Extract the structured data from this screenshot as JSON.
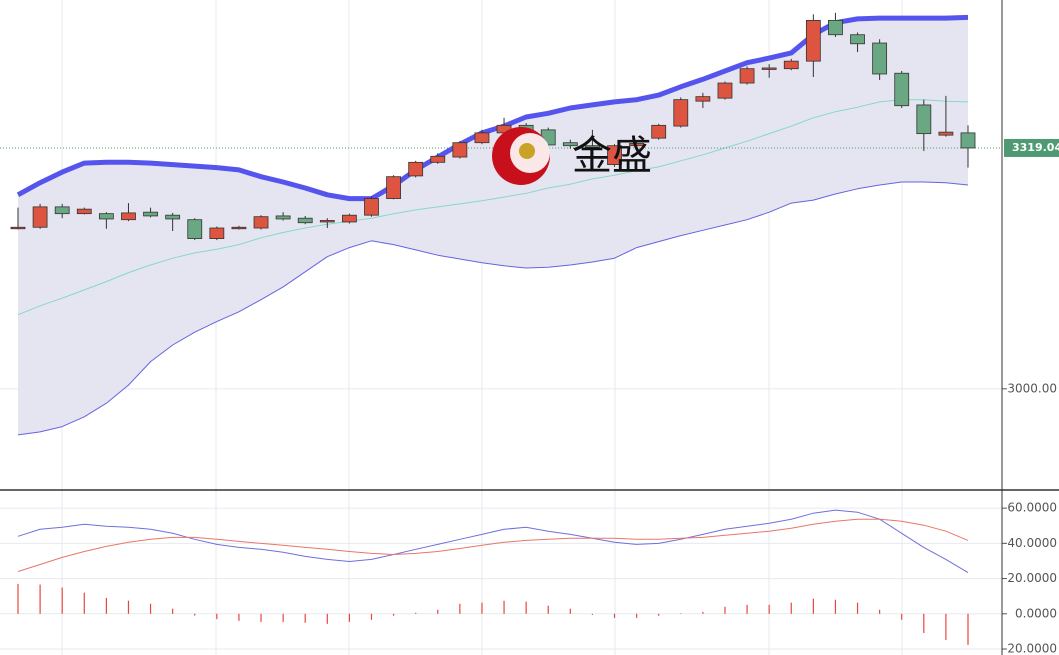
{
  "chart_data": [
    {
      "type": "candlestick",
      "watermark": "金盛",
      "categories": [
        null,
        null,
        null,
        null,
        null,
        null,
        null,
        null,
        null,
        null,
        null,
        null,
        null,
        null,
        null,
        null,
        null,
        null,
        null,
        null,
        null,
        null,
        null,
        null,
        null,
        null,
        null,
        null,
        null,
        null,
        null,
        null,
        null,
        null,
        null,
        null,
        null,
        null,
        null,
        null,
        null,
        null,
        null,
        null
      ],
      "open": [
        3213,
        3214,
        3241,
        3232,
        3232,
        3224,
        3234,
        3230,
        3224,
        3199,
        3213,
        3213,
        3229,
        3226,
        3221,
        3221,
        3230,
        3252,
        3282,
        3300,
        3307,
        3326,
        3339,
        3349,
        3343,
        3326,
        3322,
        3297,
        3322,
        3332,
        3348,
        3381,
        3385,
        3405,
        3424,
        3424,
        3434,
        3488,
        3469,
        3458,
        3418,
        3376,
        3336,
        3339
      ],
      "high": [
        3240,
        3245,
        3245,
        3240,
        3234,
        3246,
        3240,
        3233,
        3226,
        3215,
        3216,
        3230,
        3234,
        3229,
        3226,
        3232,
        3255,
        3283,
        3302,
        3312,
        3328,
        3343,
        3359,
        3352,
        3346,
        3330,
        3343,
        3324,
        3328,
        3351,
        3386,
        3392,
        3407,
        3427,
        3430,
        3437,
        3496,
        3498,
        3472,
        3463,
        3421,
        3383,
        3388,
        3349
      ],
      "low": [
        3211,
        3212,
        3226,
        3231,
        3212,
        3222,
        3227,
        3209,
        3197,
        3197,
        3211,
        3211,
        3223,
        3218,
        3213,
        3219,
        3228,
        3251,
        3280,
        3298,
        3305,
        3324,
        3337,
        3339,
        3320,
        3318,
        3316,
        3294,
        3320,
        3330,
        3346,
        3372,
        3383,
        3403,
        3412,
        3422,
        3413,
        3466,
        3446,
        3409,
        3372,
        3315,
        3334,
        3293
      ],
      "close": [
        3214,
        3241,
        3232,
        3238,
        3225,
        3233,
        3229,
        3225,
        3199,
        3213,
        3214,
        3228,
        3225,
        3220,
        3223,
        3230,
        3252,
        3281,
        3300,
        3308,
        3326,
        3339,
        3349,
        3342,
        3323,
        3322,
        3321,
        3322,
        3325,
        3349,
        3383,
        3387,
        3405,
        3424,
        3425,
        3434,
        3488,
        3469,
        3457,
        3417,
        3375,
        3338,
        3340,
        3319.04
      ],
      "up_color": "#dd5540",
      "down_color": "#6aa884",
      "band_fill": "#e5e5f2",
      "upper_band": {
        "color": "#5555ee",
        "values": [
          3257,
          3273,
          3287,
          3299,
          3300,
          3300,
          3299,
          3297,
          3295,
          3293,
          3290,
          3281,
          3274,
          3266,
          3257,
          3252,
          3252,
          3269,
          3290,
          3307,
          3324,
          3339,
          3348,
          3360,
          3365,
          3372,
          3376,
          3380,
          3383,
          3389,
          3400,
          3410,
          3421,
          3432,
          3438,
          3445,
          3469,
          3485,
          3490,
          3491,
          3491,
          3491,
          3491,
          3492
        ]
      },
      "middle_band": {
        "color": "#86d8c8",
        "values": [
          3098,
          3110,
          3120,
          3131,
          3142,
          3154,
          3164,
          3173,
          3180,
          3185,
          3191,
          3200,
          3207,
          3213,
          3218,
          3222,
          3226,
          3232,
          3237,
          3241,
          3245,
          3249,
          3254,
          3259,
          3266,
          3271,
          3278,
          3283,
          3289,
          3294,
          3302,
          3310,
          3319,
          3328,
          3338,
          3348,
          3359,
          3367,
          3373,
          3380,
          3383,
          3383,
          3381,
          3380
        ]
      },
      "lower_band": {
        "color": "#6464e0",
        "values": [
          2939,
          2943,
          2950,
          2963,
          2981,
          3005,
          3036,
          3058,
          3075,
          3089,
          3102,
          3118,
          3135,
          3155,
          3175,
          3187,
          3196,
          3191,
          3184,
          3177,
          3172,
          3167,
          3163,
          3160,
          3161,
          3164,
          3168,
          3173,
          3187,
          3195,
          3203,
          3210,
          3217,
          3224,
          3234,
          3246,
          3250,
          3258,
          3265,
          3270,
          3274,
          3274,
          3273,
          3270
        ]
      },
      "ylim": [
        2866,
        3515
      ],
      "yticks": [
        {
          "value": 3000,
          "label": "3000.00"
        }
      ],
      "last_price": {
        "value": 3319.04,
        "label": "3319.040",
        "color": "#4f9a72"
      },
      "grid": true
    },
    {
      "type": "indicator",
      "series": [
        {
          "color": "#6f6fdd",
          "values": [
            44,
            48,
            49.1,
            50.9,
            49.7,
            49.1,
            48,
            45.7,
            42.3,
            39.4,
            37.7,
            36.6,
            34.9,
            32.6,
            30.9,
            29.7,
            30.9,
            33.7,
            36.6,
            39.4,
            42.3,
            45.1,
            48,
            49.1,
            46.9,
            45.1,
            42.9,
            40.6,
            39.4,
            40,
            42.3,
            45.1,
            48,
            49.7,
            51.4,
            53.7,
            57.1,
            58.9,
            57.7,
            53.7,
            45.7,
            37.7,
            30.9,
            23.4
          ]
        },
        {
          "color": "#e8766a",
          "values": [
            24,
            28,
            32,
            35.4,
            38.3,
            40.6,
            42.3,
            43.4,
            43.4,
            42.3,
            41.1,
            40,
            38.9,
            37.7,
            36.6,
            35.4,
            34.3,
            33.7,
            34.3,
            35.4,
            37.1,
            38.9,
            40.6,
            41.7,
            42.3,
            42.9,
            42.9,
            42.9,
            42.3,
            42.3,
            42.9,
            43.4,
            44.6,
            45.7,
            46.9,
            48.6,
            50.9,
            52.6,
            53.7,
            53.7,
            52.6,
            50.3,
            46.9,
            41.7
          ]
        }
      ],
      "histogram": {
        "color": "#e8453c",
        "values": [
          17,
          16.6,
          14.9,
          12,
          9,
          7.4,
          5.7,
          2.9,
          -1,
          -3,
          -4,
          -4.6,
          -4.6,
          -5.1,
          -5.7,
          -4.6,
          -3.4,
          -1.1,
          0.6,
          2.3,
          5.7,
          6.3,
          7.4,
          6.9,
          4.6,
          2.9,
          -0.6,
          -2.3,
          -2.3,
          -1.1,
          0.3,
          1.1,
          4,
          5.1,
          5.1,
          6.3,
          8.6,
          8,
          6.3,
          2.3,
          -3.4,
          -10.9,
          -14.9,
          -17.7
        ]
      },
      "ylim": [
        -23.4,
        70.3
      ],
      "yticks": [
        {
          "value": 60,
          "label": "60.0000"
        },
        {
          "value": 40,
          "label": "40.0000"
        },
        {
          "value": 20,
          "label": "20.0000"
        },
        {
          "value": 0,
          "label": "0.0000"
        },
        {
          "value": -20,
          "label": "-20.0000"
        }
      ],
      "grid": true
    }
  ]
}
